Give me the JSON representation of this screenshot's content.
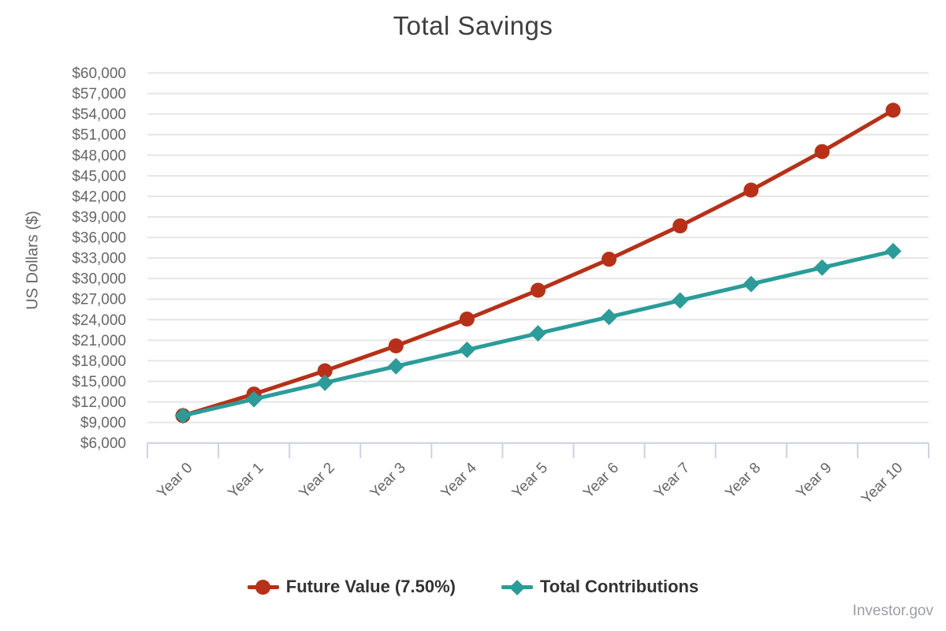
{
  "chart": {
    "watermark": "Investor.gov"
  },
  "chart_data": {
    "type": "line",
    "title": "Total Savings",
    "xlabel": "",
    "ylabel": "US Dollars ($)",
    "categories": [
      "Year 0",
      "Year 1",
      "Year 2",
      "Year 3",
      "Year 4",
      "Year 5",
      "Year 6",
      "Year 7",
      "Year 8",
      "Year 9",
      "Year 10"
    ],
    "ylim": [
      6000,
      60000
    ],
    "ytick_step": 3000,
    "ytick_labels": [
      "$60,000",
      "$57,000",
      "$54,000",
      "$51,000",
      "$48,000",
      "$45,000",
      "$42,000",
      "$39,000",
      "$36,000",
      "$33,000",
      "$30,000",
      "$27,000",
      "$24,000",
      "$21,000",
      "$18,000",
      "$15,000",
      "$12,000",
      "$9,000",
      "$6,000"
    ],
    "grid": "horizontal",
    "legend_position": "bottom",
    "series": [
      {
        "name": "Future Value (7.50%)",
        "color": "#b83017",
        "marker": "circle",
        "values": [
          10000,
          13150,
          16536,
          20176,
          24090,
          28296,
          32819,
          37680,
          42906,
          48524,
          54563
        ]
      },
      {
        "name": "Total Contributions",
        "color": "#2a9c99",
        "marker": "diamond",
        "values": [
          10000,
          12400,
          14800,
          17200,
          19600,
          22000,
          24400,
          26800,
          29200,
          31600,
          34000
        ]
      }
    ],
    "colors": {
      "grid_line": "#e6e6e6",
      "axis_line": "#ccd2e8",
      "tick_label": "#666666",
      "title_text": "#3f3f3f",
      "legend_text": "#333333",
      "watermark_text": "#99a1a8"
    }
  }
}
